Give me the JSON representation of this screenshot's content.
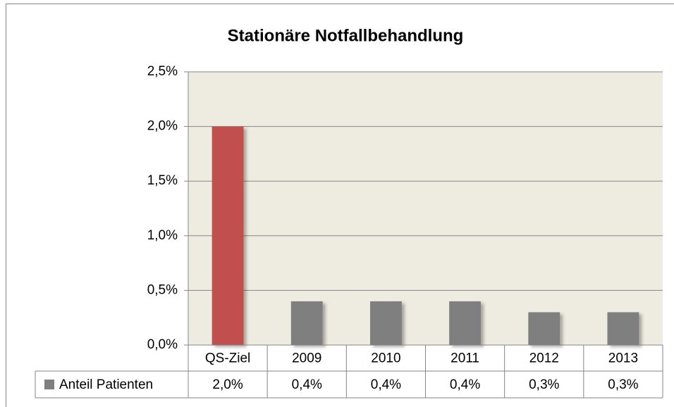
{
  "chart_data": {
    "type": "bar",
    "title": "Stationäre Notfallbehandlung",
    "categories": [
      "QS-Ziel",
      "2009",
      "2010",
      "2011",
      "2012",
      "2013"
    ],
    "series": [
      {
        "name": "Anteil Patienten",
        "color": "#7f7f7f",
        "colors": [
          "#c0504d",
          "#7f7f7f",
          "#7f7f7f",
          "#7f7f7f",
          "#7f7f7f",
          "#7f7f7f"
        ],
        "values": [
          2.0,
          0.4,
          0.4,
          0.4,
          0.3,
          0.3
        ],
        "value_labels": [
          "2,0%",
          "0,4%",
          "0,4%",
          "0,4%",
          "0,3%",
          "0,3%"
        ]
      }
    ],
    "ylim": [
      0,
      2.5
    ],
    "yticks": [
      {
        "value": 0,
        "label": "0,0%"
      },
      {
        "value": 0.5,
        "label": "0,5%"
      },
      {
        "value": 1.0,
        "label": "1,0%"
      },
      {
        "value": 1.5,
        "label": "1,5%"
      },
      {
        "value": 2.0,
        "label": "2,0%"
      },
      {
        "value": 2.5,
        "label": "2,5%"
      }
    ],
    "grid": true,
    "plot_background": "#eeece1",
    "data_table": true
  }
}
